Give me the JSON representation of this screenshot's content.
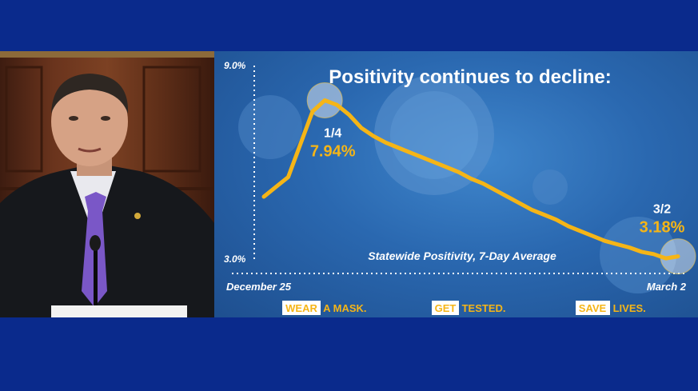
{
  "chart_data": {
    "type": "line",
    "title": "Positivity continues to decline:",
    "series_label": "Statewide Positivity, 7-Day Average",
    "ylim": [
      3.0,
      9.0
    ],
    "y_tick_labels": [
      "9.0%",
      "3.0%"
    ],
    "x_start_label": "December 25",
    "x_end_label": "March 2",
    "x": [
      "12/25",
      "12/27",
      "12/29",
      "12/31",
      "1/2",
      "1/4",
      "1/6",
      "1/8",
      "1/10",
      "1/12",
      "1/14",
      "1/16",
      "1/18",
      "1/20",
      "1/22",
      "1/24",
      "1/26",
      "1/28",
      "1/30",
      "2/1",
      "2/3",
      "2/5",
      "2/7",
      "2/9",
      "2/11",
      "2/13",
      "2/15",
      "2/17",
      "2/19",
      "2/21",
      "2/23",
      "2/25",
      "2/27",
      "3/1",
      "3/2"
    ],
    "values": [
      5.0,
      5.3,
      5.6,
      6.6,
      7.6,
      7.94,
      7.8,
      7.5,
      7.1,
      6.85,
      6.65,
      6.5,
      6.35,
      6.2,
      6.05,
      5.9,
      5.75,
      5.55,
      5.4,
      5.2,
      5.0,
      4.8,
      4.6,
      4.45,
      4.3,
      4.1,
      3.95,
      3.8,
      3.65,
      3.55,
      3.45,
      3.32,
      3.25,
      3.12,
      3.18
    ],
    "annotations": [
      {
        "date": "1/4",
        "value_label": "7.94%"
      },
      {
        "date": "3/2",
        "value_label": "3.18%"
      }
    ],
    "line_color": "#f5b517",
    "highlight_color": "#f2c54a",
    "grid": false
  },
  "footer": {
    "slogan_1": {
      "highlight": "WEAR",
      "rest": " A MASK."
    },
    "slogan_2": {
      "highlight": "GET",
      "rest": " TESTED."
    },
    "slogan_3": {
      "highlight": "SAVE",
      "rest": " LIVES."
    }
  }
}
